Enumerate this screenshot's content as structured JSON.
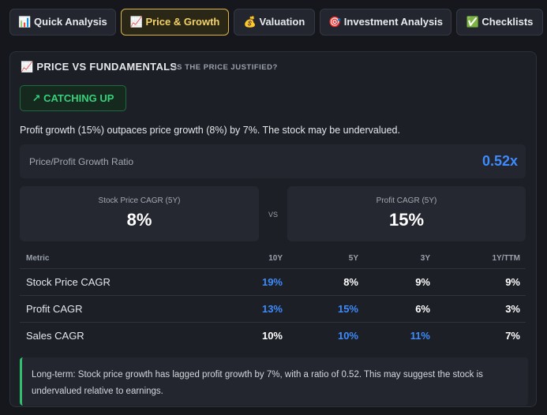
{
  "tabs": [
    "📊 Quick Analysis",
    "📈 Price & Growth",
    "💰 Valuation",
    "🎯 Investment Analysis",
    "✅ Checklists"
  ],
  "section": {
    "title": "📈 PRICE VS FUNDAMENTALS",
    "subtitle": "IS THE PRICE JUSTIFIED?",
    "badge": "↗ CATCHING UP",
    "summary": "Profit growth (15%) outpaces price growth (8%) by 7%. The stock may be undervalued.",
    "ratio": {
      "label": "Price/Profit Growth Ratio",
      "value": "0.52x"
    },
    "cards": [
      {
        "label": "Stock Price CAGR (5Y)",
        "value": "8%"
      },
      {
        "label": "Profit CAGR (5Y)",
        "value": "15%"
      }
    ],
    "vs": "VS",
    "table": {
      "header": [
        "Metric",
        "10Y",
        "5Y",
        "3Y",
        "1Y/TTM"
      ],
      "rows": [
        [
          "Stock Price CAGR",
          "19%",
          "8%",
          "9%",
          "9%"
        ],
        [
          "Profit CAGR",
          "13%",
          "15%",
          "6%",
          "3%"
        ],
        [
          "Sales CAGR",
          "10%",
          "10%",
          "11%",
          "7%"
        ]
      ]
    },
    "note": "Long-term: Stock price growth has lagged profit growth by 7%, with a ratio of 0.52. This may suggest the stock is undervalued relative to earnings."
  }
}
